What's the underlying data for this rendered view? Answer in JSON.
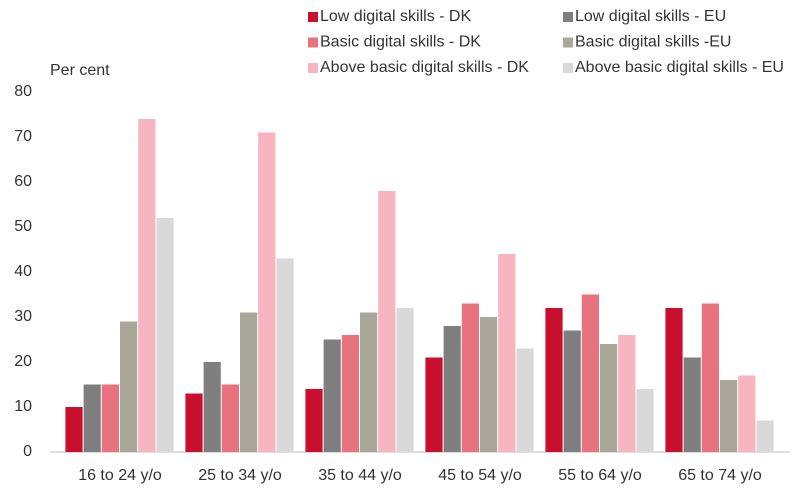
{
  "chart_data": {
    "type": "bar",
    "y_axis_label": "Per cent",
    "categories": [
      "16 to 24 y/o",
      "25 to 34 y/o",
      "35 to 44 y/o",
      "45 to 54 y/o",
      "55 to 64 y/o",
      "65 to 74 y/o"
    ],
    "series": [
      {
        "name": "Low digital skills - DK",
        "color": "#c8102e",
        "values": [
          10,
          13,
          14,
          21,
          32,
          32
        ]
      },
      {
        "name": "Low digital skills - EU",
        "color": "#7f7f7f",
        "values": [
          15,
          20,
          25,
          28,
          27,
          21
        ]
      },
      {
        "name": "Basic digital skills - DK",
        "color": "#e8737f",
        "values": [
          15,
          15,
          26,
          33,
          35,
          33
        ]
      },
      {
        "name": "Basic digital skills -EU",
        "color": "#a9a898",
        "values": [
          29,
          31,
          31,
          30,
          24,
          16
        ]
      },
      {
        "name": "Above basic digital skills - DK",
        "color": "#f6b5c0",
        "values": [
          74,
          71,
          58,
          44,
          26,
          17
        ]
      },
      {
        "name": "Above basic digital skills - EU",
        "color": "#d9d9d9",
        "values": [
          52,
          43,
          32,
          23,
          14,
          7
        ]
      }
    ],
    "ylim": [
      0,
      80
    ],
    "yticks": [
      0,
      10,
      20,
      30,
      40,
      50,
      60,
      70,
      80
    ],
    "legend": "top-right",
    "grid": false
  }
}
